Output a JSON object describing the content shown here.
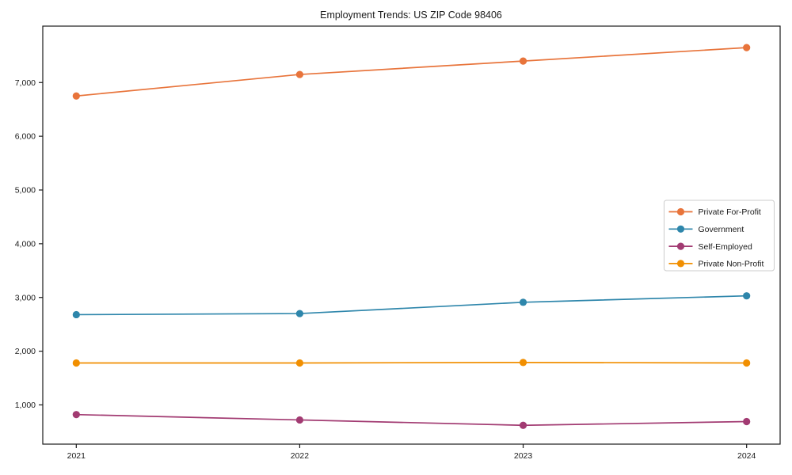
{
  "chart_data": {
    "type": "line",
    "title": "Employment Trends: US ZIP Code 98406",
    "x": [
      2021,
      2022,
      2023,
      2024
    ],
    "x_labels": [
      "2021",
      "2022",
      "2023",
      "2024"
    ],
    "series": [
      {
        "name": "Private For-Profit",
        "color": "#E8743B",
        "values": [
          6750,
          7150,
          7400,
          7650
        ]
      },
      {
        "name": "Government",
        "color": "#2E86AB",
        "values": [
          2680,
          2700,
          2910,
          3030
        ]
      },
      {
        "name": "Self-Employed",
        "color": "#A23B72",
        "values": [
          820,
          720,
          620,
          690
        ]
      },
      {
        "name": "Private Non-Profit",
        "color": "#F18F01",
        "values": [
          1780,
          1780,
          1790,
          1780
        ]
      }
    ],
    "yticks": [
      1000,
      2000,
      3000,
      4000,
      5000,
      6000,
      7000
    ],
    "ytick_labels": [
      "1,000",
      "2,000",
      "3,000",
      "4,000",
      "5,000",
      "6,000",
      "7,000"
    ],
    "xlim": [
      2020.85,
      2024.15
    ],
    "ylim": [
      270,
      8050
    ],
    "grid": false,
    "legend_position": "center-right",
    "marker": "circle",
    "spine_color": "#1a1a1a",
    "legend_border_color": "#cccccc"
  }
}
